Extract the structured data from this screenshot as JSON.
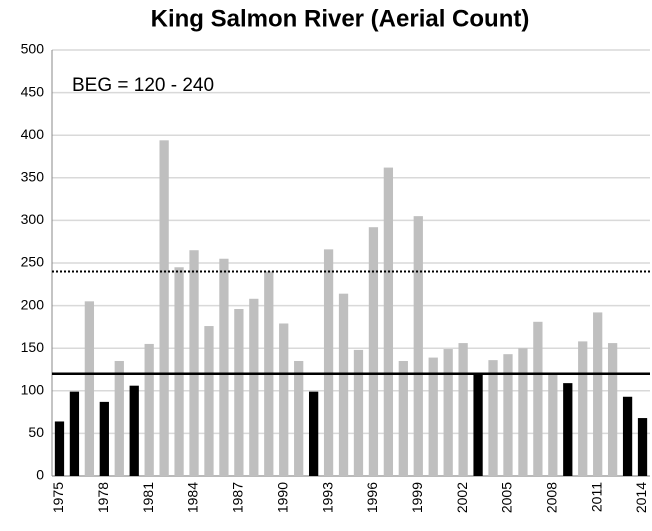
{
  "chart_data": {
    "type": "bar",
    "title": "King Salmon River (Aerial Count)",
    "annotation": "BEG = 120 - 240",
    "categories": [
      "1975",
      null,
      null,
      "1978",
      null,
      null,
      "1981",
      null,
      null,
      "1984",
      null,
      null,
      "1987",
      null,
      null,
      "1990",
      null,
      null,
      "1993",
      null,
      null,
      "1996",
      null,
      null,
      "1999",
      null,
      null,
      "2002",
      null,
      null,
      "2005",
      null,
      null,
      "2008",
      null,
      null,
      "2011",
      null,
      null,
      "2014"
    ],
    "values": [
      64,
      99,
      205,
      87,
      135,
      106,
      155,
      394,
      245,
      265,
      176,
      255,
      196,
      208,
      240,
      179,
      135,
      99,
      266,
      214,
      148,
      292,
      362,
      135,
      305,
      139,
      149,
      156,
      120,
      136,
      143,
      150,
      181,
      120,
      109,
      158,
      192,
      156,
      93,
      68
    ],
    "colors": [
      "#000000",
      "#000000",
      "#bfbfbf",
      "#000000",
      "#bfbfbf",
      "#000000",
      "#bfbfbf",
      "#bfbfbf",
      "#bfbfbf",
      "#bfbfbf",
      "#bfbfbf",
      "#bfbfbf",
      "#bfbfbf",
      "#bfbfbf",
      "#bfbfbf",
      "#bfbfbf",
      "#bfbfbf",
      "#000000",
      "#bfbfbf",
      "#bfbfbf",
      "#bfbfbf",
      "#bfbfbf",
      "#bfbfbf",
      "#bfbfbf",
      "#bfbfbf",
      "#bfbfbf",
      "#bfbfbf",
      "#bfbfbf",
      "#000000",
      "#bfbfbf",
      "#bfbfbf",
      "#bfbfbf",
      "#bfbfbf",
      "#bfbfbf",
      "#000000",
      "#bfbfbf",
      "#bfbfbf",
      "#bfbfbf",
      "#000000",
      "#000000"
    ],
    "reference_lines": [
      {
        "value": 120,
        "style": "solid"
      },
      {
        "value": 240,
        "style": "dotted"
      }
    ],
    "ylim": [
      0,
      500
    ],
    "yticks": [
      0,
      50,
      100,
      150,
      200,
      250,
      300,
      350,
      400,
      450,
      500
    ],
    "grid": true
  }
}
